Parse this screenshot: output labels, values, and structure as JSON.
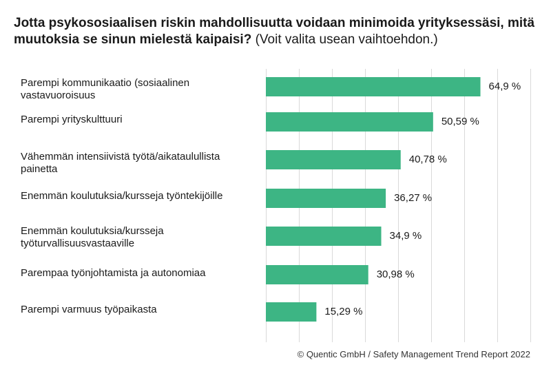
{
  "title": {
    "question": "Jotta psykososiaalisen riskin mahdollisuutta voidaan minimoida yrityksessäsi, mitä muutoksia se sinun mielestä kaipaisi?",
    "note": "(Voit valita usean vaihtoehdon.)"
  },
  "chart_data": {
    "type": "bar",
    "orientation": "horizontal",
    "categories": [
      "Parempi kommunikaatio (sosiaalinen vastavuoroisuus",
      "Parempi yrityskulttuuri",
      "Vähemmän intensiivistä työtä/aikataulullista painetta",
      "Enemmän koulutuksia/kursseja työntekijöille",
      "Enemmän koulutuksia/kursseja työturvallisuusvastaaville",
      "Parempaa työnjohtamista ja autonomiaa",
      "Parempi varmuus työpaikasta"
    ],
    "values": [
      64.9,
      50.59,
      40.78,
      36.27,
      34.9,
      30.98,
      15.29
    ],
    "value_labels": [
      "64,9 %",
      "50,59 %",
      "40,78 %",
      "36,27 %",
      "34,9 %",
      "30,98 %",
      "15,29 %"
    ],
    "xlim": [
      0,
      80
    ],
    "bar_color": "#3db584",
    "grid": true
  },
  "footer": "© Quentic GmbH / Safety Management Trend Report 2022"
}
